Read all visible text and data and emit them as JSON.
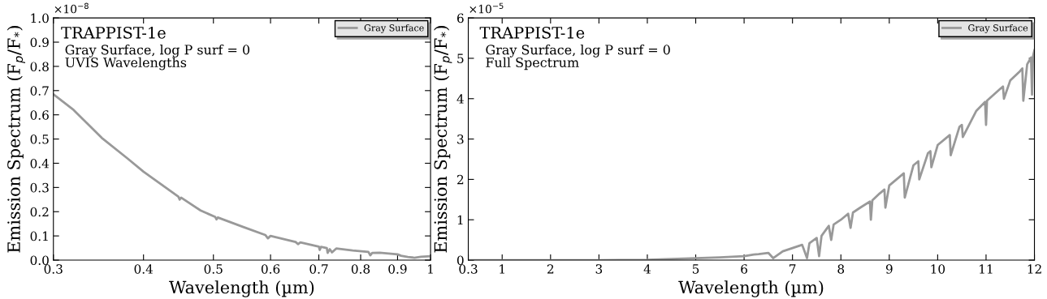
{
  "chart_data": [
    {
      "type": "line",
      "title": "TRAPPIST-1e",
      "subtitle": "Gray Surface, log P surf = 0\nUVIS Wavelengths",
      "xlabel": "Wavelength (µm)",
      "ylabel": "Emission Spectrum (F$_{p}$/F$_{*}$)",
      "annotations": [
        "×10$^{−8}$"
      ],
      "log": "x",
      "xlim": [
        0.3,
        1
      ],
      "ylim": [
        0,
        1.0
      ],
      "xticks": [
        0.3,
        0.4,
        0.5,
        0.6,
        0.7,
        0.8,
        0.9,
        1
      ],
      "yticks": [
        {
          "value": 0,
          "label": "0.0"
        },
        0.1,
        0.2,
        0.3,
        0.4,
        0.5,
        0.6,
        0.7,
        0.8,
        0.9,
        {
          "value": 1.0,
          "label": "1.0"
        }
      ],
      "grid": false,
      "legend": "top right",
      "series": [
        {
          "name": "Gray Surface",
          "color": "#999999",
          "x": [
            0.3,
            0.32,
            0.35,
            0.38,
            0.4,
            0.42,
            0.447,
            0.449,
            0.451,
            0.48,
            0.503,
            0.505,
            0.507,
            0.55,
            0.59,
            0.595,
            0.6,
            0.65,
            0.655,
            0.66,
            0.7,
            0.702,
            0.705,
            0.718,
            0.72,
            0.725,
            0.73,
            0.74,
            0.78,
            0.82,
            0.825,
            0.83,
            0.85,
            0.9,
            0.91,
            0.93,
            0.95,
            0.97,
            1.0
          ],
          "values": [
            0.685,
            0.62,
            0.505,
            0.42,
            0.365,
            0.32,
            0.262,
            0.25,
            0.258,
            0.205,
            0.178,
            0.168,
            0.176,
            0.137,
            0.104,
            0.09,
            0.1,
            0.075,
            0.066,
            0.073,
            0.056,
            0.042,
            0.055,
            0.05,
            0.03,
            0.045,
            0.032,
            0.048,
            0.04,
            0.034,
            0.02,
            0.03,
            0.031,
            0.024,
            0.018,
            0.013,
            0.01,
            0.014,
            0.016
          ]
        }
      ]
    },
    {
      "type": "line",
      "title": "TRAPPIST-1e",
      "subtitle": "Gray Surface, log P surf = 0\nFull Spectrum",
      "xlabel": "Wavelength (µm)",
      "ylabel": "Emission Spectrum (F$_{p}$/F$_{*}$)",
      "annotations": [
        "×10$^{−5}$"
      ],
      "xlim": [
        0.3,
        12
      ],
      "ylim": [
        0,
        6
      ],
      "xticks": [
        0.3,
        1,
        2,
        3,
        4,
        5,
        6,
        7,
        8,
        9,
        10,
        11,
        12
      ],
      "yticks": [
        0,
        1,
        2,
        3,
        4,
        5,
        6
      ],
      "grid": false,
      "legend": "top right",
      "series": [
        {
          "name": "Gray Surface",
          "color": "#999999",
          "x": [
            0.3,
            1,
            2,
            3,
            4,
            4.5,
            5,
            5.5,
            6,
            6.2,
            6.3,
            6.5,
            6.6,
            6.8,
            7,
            7.2,
            7.3,
            7.35,
            7.5,
            7.55,
            7.6,
            7.75,
            7.8,
            7.85,
            8,
            8.15,
            8.2,
            8.25,
            8.4,
            8.6,
            8.62,
            8.65,
            8.8,
            8.9,
            8.92,
            9.0,
            9.2,
            9.3,
            9.32,
            9.5,
            9.6,
            9.62,
            9.8,
            9.85,
            9.87,
            10,
            10.2,
            10.25,
            10.27,
            10.45,
            10.5,
            10.52,
            10.8,
            10.98,
            11.0,
            11.02,
            11.3,
            11.35,
            11.37,
            11.5,
            11.7,
            11.75,
            11.77,
            11.85,
            11.93,
            11.95,
            11.97,
            12
          ],
          "values": [
            0,
            0,
            0,
            0,
            0.01,
            0.03,
            0.05,
            0.07,
            0.1,
            0.14,
            0.15,
            0.18,
            0.05,
            0.22,
            0.3,
            0.38,
            0.05,
            0.42,
            0.55,
            0.1,
            0.6,
            0.85,
            0.5,
            0.88,
            1.0,
            1.15,
            0.8,
            1.18,
            1.3,
            1.45,
            1.0,
            1.48,
            1.65,
            1.75,
            1.3,
            1.85,
            2.05,
            2.15,
            1.55,
            2.35,
            2.45,
            2.0,
            2.65,
            2.7,
            2.3,
            2.85,
            3.05,
            3.1,
            2.6,
            3.3,
            3.35,
            3.05,
            3.7,
            3.92,
            3.35,
            3.95,
            4.25,
            4.3,
            4.0,
            4.45,
            4.68,
            4.75,
            3.95,
            4.85,
            5.02,
            4.1,
            5.05,
            5.2
          ]
        }
      ]
    }
  ]
}
